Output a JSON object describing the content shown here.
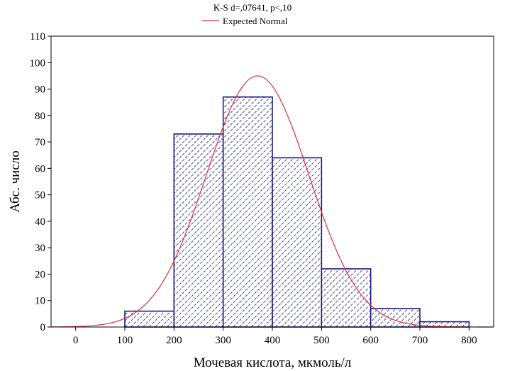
{
  "chart_data": {
    "type": "bar",
    "title": "K-S d=,07641, p<,10",
    "legend": {
      "label": "Expected Normal",
      "placement": "top-center",
      "color": "#e03040"
    },
    "xlabel": "Мочевая кислота, мкмоль/л",
    "ylabel": "Абс. число",
    "xlim": [
      -50,
      850
    ],
    "ylim": [
      0,
      110
    ],
    "x_ticks": [
      0,
      100,
      200,
      300,
      400,
      500,
      600,
      700,
      800
    ],
    "y_ticks": [
      0,
      10,
      20,
      30,
      40,
      50,
      60,
      70,
      80,
      90,
      100,
      110
    ],
    "bins": [
      {
        "from": 100,
        "to": 200,
        "count": 6
      },
      {
        "from": 200,
        "to": 300,
        "count": 73
      },
      {
        "from": 300,
        "to": 400,
        "count": 87
      },
      {
        "from": 400,
        "to": 500,
        "count": 64
      },
      {
        "from": 500,
        "to": 600,
        "count": 22
      },
      {
        "from": 600,
        "to": 700,
        "count": 7
      },
      {
        "from": 700,
        "to": 800,
        "count": 2
      }
    ],
    "normal_curve": {
      "mean": 370,
      "sd": 104,
      "peak": 95
    },
    "grid": false,
    "colors": {
      "bar_edge": "#1a1a80",
      "bar_hatch": "#1a1a80",
      "curve": "#e03040"
    }
  }
}
